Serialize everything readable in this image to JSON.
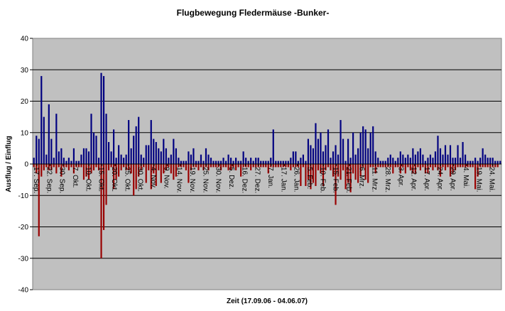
{
  "chart_data": {
    "type": "bar",
    "title": "Flugbewegung Fledermäuse -Bunker-",
    "xlabel": "Zeit (17.09.06 - 04.06.07)",
    "ylabel": "Ausflug / Einflug",
    "ylim": [
      -40,
      40
    ],
    "yticks": [
      -40,
      -30,
      -20,
      -10,
      0,
      10,
      20,
      30,
      40
    ],
    "grid": true,
    "legend": "none",
    "colors": {
      "plot_background": "#c0c0c0",
      "positive": "#000080",
      "negative": "#990000",
      "gridline": "#000000"
    },
    "x_tick_labels": [
      "17. Sep.",
      "22. Sep.",
      "30. Sep.",
      "7. Okt.",
      "10. Okt.",
      "15. Okt.",
      "20. Okt.",
      "25. Okt.",
      "30. Okt.",
      "4. Nov.",
      "9. Nov.",
      "14. Nov.",
      "19. Nov.",
      "25. Nov.",
      "30. Nov.",
      "5. Dez.",
      "16. Dez.",
      "27. Dez.",
      "7. Jan.",
      "17. Jan.",
      "26. Jan.",
      "5. Feb.",
      "10. Feb.",
      "15. Feb.",
      "21. Feb.",
      "6. Mrz.",
      "11. Mrz.",
      "28. Mrz.",
      "3. Apr.",
      "12. Apr.",
      "17. Apr.",
      "24. Apr.",
      "29. Apr.",
      "4. Mai.",
      "19. Mai.",
      "24. Mai."
    ],
    "series": [
      {
        "values": [
          2,
          9,
          8,
          28,
          15,
          3,
          19,
          8,
          2,
          16,
          4,
          5,
          2,
          1,
          2,
          1,
          5,
          1,
          1,
          3,
          5,
          5,
          4,
          16,
          10,
          9,
          2,
          29,
          28,
          16,
          7,
          4,
          11,
          2,
          6,
          3,
          2,
          3,
          14,
          5,
          9,
          12,
          15,
          3,
          2,
          6,
          6,
          14,
          8,
          7,
          5,
          4,
          8,
          5,
          2,
          3,
          8,
          5,
          2,
          1,
          1,
          1,
          4,
          3,
          5,
          1,
          1,
          3,
          1,
          5,
          3,
          2,
          1,
          1,
          1,
          1,
          2,
          1,
          3,
          2,
          1,
          2,
          1,
          1,
          4,
          2,
          1,
          2,
          1,
          2,
          2,
          1,
          1,
          1,
          1,
          2,
          11,
          1,
          1,
          1,
          1,
          1,
          1,
          2,
          4,
          4,
          1,
          2,
          3,
          1,
          8,
          6,
          5,
          13,
          8,
          10,
          4,
          6,
          11,
          2,
          4,
          6,
          3,
          14,
          8,
          1,
          8,
          2,
          10,
          3,
          5,
          10,
          12,
          11,
          5,
          10,
          12,
          4,
          2,
          1,
          1,
          1,
          2,
          3,
          2,
          1,
          2,
          4,
          3,
          2,
          3,
          2,
          5,
          3,
          4,
          5,
          3,
          1,
          2,
          3,
          2,
          4,
          9,
          5,
          3,
          6,
          3,
          6,
          2,
          2,
          6,
          2,
          7,
          3,
          1,
          1,
          1,
          2,
          1,
          2,
          5,
          3,
          2,
          2,
          2,
          1,
          1,
          1
        ],
        "color": "#000080"
      },
      {
        "values": [
          -1,
          -3,
          -23,
          -4,
          -2,
          -1,
          -2,
          -2,
          -1,
          -3,
          -1,
          -4,
          -1,
          -1,
          -2,
          -1,
          -3,
          -1,
          -1,
          -1,
          -5,
          -4,
          -5,
          -3,
          -2,
          -1,
          -2,
          -30,
          -21,
          -13,
          -2,
          -1,
          -8,
          -5,
          -4,
          -2,
          -1,
          -2,
          -2,
          -3,
          -10,
          -8,
          -4,
          -2,
          -1,
          -6,
          -2,
          -8,
          -3,
          -7,
          -2,
          -6,
          -3,
          -2,
          -1,
          -3,
          -5,
          -4,
          -1,
          -1,
          -1,
          -2,
          -6,
          -2,
          -1,
          -1,
          -2,
          -1,
          -2,
          -1,
          -2,
          -1,
          -1,
          -1,
          -1,
          -2,
          -1,
          -1,
          -2,
          -2,
          -1,
          -2,
          -1,
          -4,
          -1,
          -1,
          -1,
          -2,
          -1,
          -1,
          -1,
          -1,
          -1,
          -1,
          -3,
          -1,
          -1,
          -1,
          -1,
          -1,
          -1,
          -1,
          -1,
          -2,
          -1,
          -1,
          -1,
          -7,
          -1,
          -7,
          -5,
          -8,
          -6,
          -7,
          -2,
          -3,
          -7,
          -2,
          -1,
          -2,
          -4,
          -13,
          -4,
          -5,
          -2,
          -8,
          -6,
          -9,
          -3,
          -5,
          -6,
          -4,
          -1,
          -5,
          -6,
          -1,
          -1,
          -3,
          -1,
          -1,
          -1,
          -1,
          -1,
          -1,
          -3,
          -1,
          -1,
          -3,
          -1,
          -3,
          -1,
          -2,
          -3,
          -3,
          -1,
          -2,
          -1,
          -3,
          -3,
          -1,
          -2,
          -1,
          -2,
          -4,
          -1,
          -2,
          -1,
          -4,
          -3,
          -2,
          -1,
          -1,
          -1,
          -1,
          -1,
          -1,
          -1,
          -8,
          -4,
          -1,
          -1,
          -1,
          -1,
          -1,
          -1,
          -1,
          -1
        ],
        "color": "#990000"
      }
    ]
  }
}
